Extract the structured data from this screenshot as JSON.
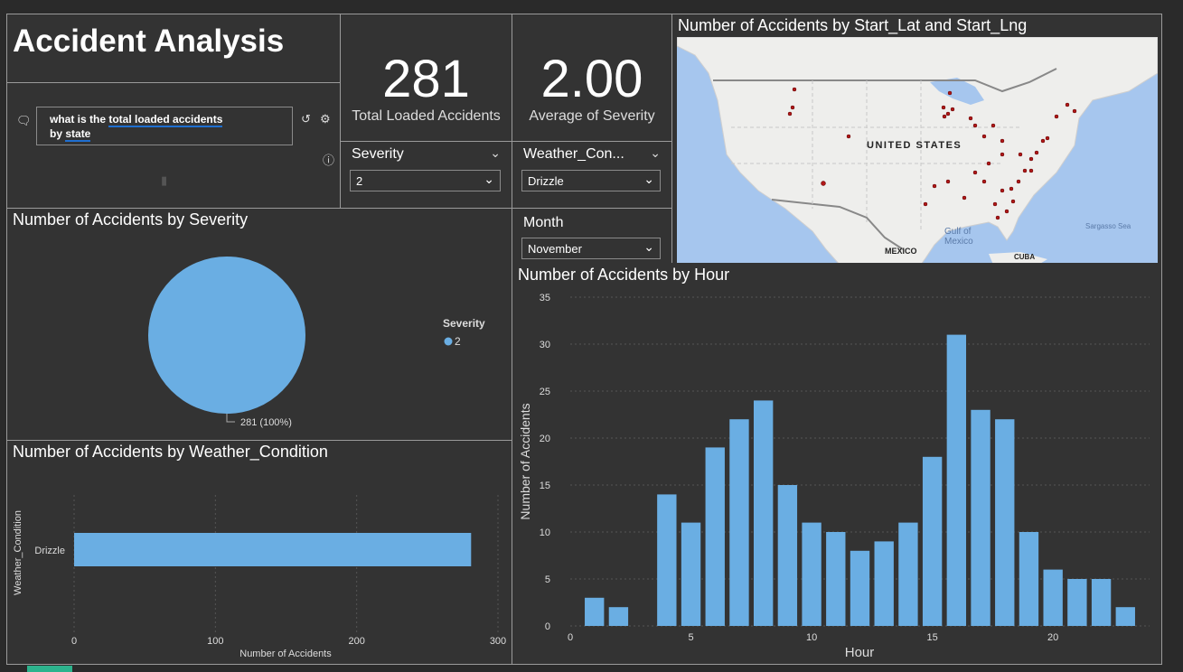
{
  "title": "Accident Analysis",
  "qa": {
    "question_part1": "what is the ",
    "question_part2": "total loaded accidents",
    "question_part3": "by ",
    "question_part4": "state"
  },
  "kpi_total": {
    "value": "281",
    "label": "Total Loaded Accidents"
  },
  "kpi_severity": {
    "value": "2.00",
    "label": "Average of Severity"
  },
  "slicers": {
    "severity": {
      "label": "Severity",
      "value": "2"
    },
    "weather": {
      "label": "Weather_Con...",
      "value": "Drizzle"
    },
    "month": {
      "label": "Month",
      "value": "November"
    }
  },
  "map": {
    "title": "Number of Accidents by Start_Lat and Start_Lng",
    "labels": {
      "us": "UNITED STATES",
      "gulf": "Gulf of\nMexico",
      "gulf1": "Gulf of",
      "gulf2": "Mexico",
      "mexico": "MEXICO",
      "cuba": "CUBA",
      "sargasso": "Sargasso Sea"
    }
  },
  "pie": {
    "title": "Number of Accidents by Severity",
    "legend_title": "Severity",
    "legend_item": "2",
    "data_label": "281 (100%)"
  },
  "weather_chart": {
    "title": "Number of Accidents by Weather_Condition",
    "ylabel": "Weather_Condition",
    "xlabel": "Number of Accidents",
    "category": "Drizzle",
    "ticks": [
      "0",
      "100",
      "200",
      "300"
    ]
  },
  "hour_chart": {
    "title": "Number of Accidents by Hour",
    "ylabel": "Number of Accidents",
    "xlabel": "Hour"
  },
  "chart_data": [
    {
      "type": "pie",
      "title": "Number of Accidents by Severity",
      "categories": [
        "2"
      ],
      "values": [
        281
      ],
      "legend": "right",
      "color": "#6aaee3"
    },
    {
      "type": "bar",
      "orientation": "horizontal",
      "title": "Number of Accidents by Weather_Condition",
      "categories": [
        "Drizzle"
      ],
      "values": [
        281
      ],
      "xlabel": "Number of Accidents",
      "ylabel": "Weather_Condition",
      "xlim": [
        0,
        300
      ],
      "xticks": [
        0,
        100,
        200,
        300
      ],
      "grid": true,
      "color": "#6aaee3"
    },
    {
      "type": "bar",
      "title": "Number of Accidents by Hour",
      "x": [
        1,
        2,
        4,
        5,
        6,
        7,
        8,
        9,
        10,
        11,
        12,
        13,
        14,
        15,
        16,
        17,
        18,
        19,
        20,
        21,
        22,
        23
      ],
      "values": [
        3,
        2,
        14,
        11,
        19,
        22,
        24,
        15,
        11,
        10,
        8,
        9,
        11,
        18,
        31,
        23,
        22,
        10,
        6,
        5,
        5,
        2
      ],
      "xlabel": "Hour",
      "ylabel": "Number of Accidents",
      "xlim": [
        0,
        24
      ],
      "ylim": [
        0,
        35
      ],
      "xticks": [
        0,
        5,
        10,
        15,
        20
      ],
      "yticks": [
        0,
        5,
        10,
        15,
        20,
        25,
        30,
        35
      ],
      "grid": true,
      "color": "#6aaee3"
    }
  ]
}
